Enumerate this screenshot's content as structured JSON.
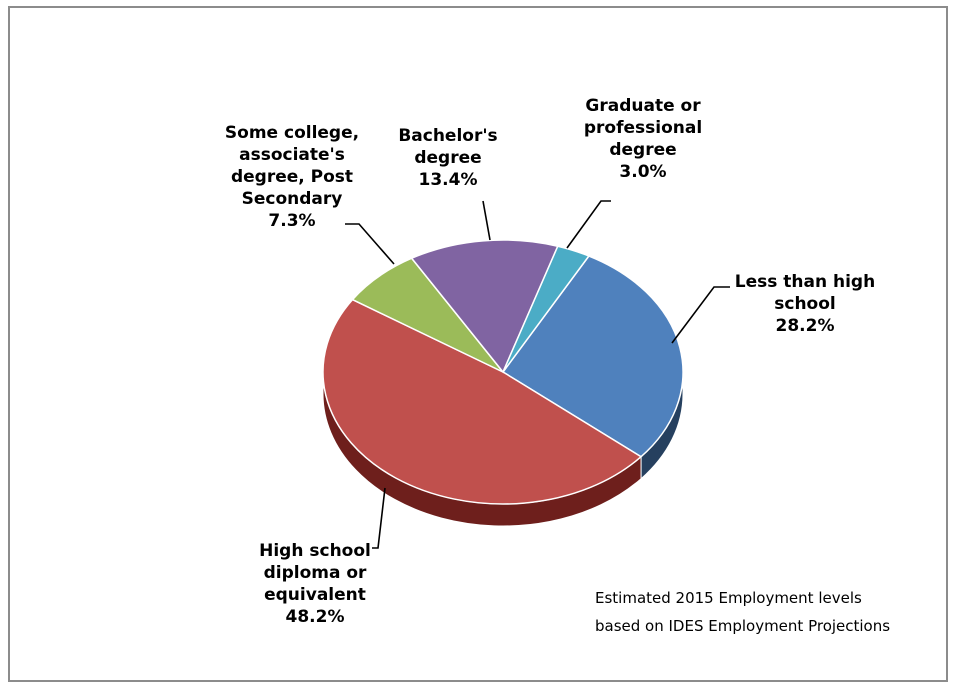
{
  "chart_data": {
    "type": "pie",
    "title": "",
    "slices": [
      {
        "label": "Less than high school",
        "label_lines": [
          "Less than high",
          "school"
        ],
        "value": 28.2,
        "value_text": "28.2%",
        "color": "#4f81bd",
        "side_color": "#26405f"
      },
      {
        "label": "High school diploma or equivalent",
        "label_lines": [
          "High school",
          "diploma or",
          "equivalent"
        ],
        "value": 48.2,
        "value_text": "48.2%",
        "color": "#c0504d",
        "side_color": "#6e1f1c"
      },
      {
        "label": "Some college, associate's degree, Post Secondary",
        "label_lines": [
          "Some college,",
          "associate's",
          "degree, Post",
          "Secondary"
        ],
        "value": 7.3,
        "value_text": "7.3%",
        "color": "#9bbb59",
        "side_color": "#5a7030"
      },
      {
        "label": "Bachelor's degree",
        "label_lines": [
          "Bachelor's",
          "degree"
        ],
        "value": 13.4,
        "value_text": "13.4%",
        "color": "#8064a2",
        "side_color": "#463560"
      },
      {
        "label": "Graduate or professional degree",
        "label_lines": [
          "Graduate or",
          "professional",
          "degree"
        ],
        "value": 3.0,
        "value_text": "3.0%",
        "color": "#4bacc6",
        "side_color": "#276070"
      }
    ],
    "annotation": [
      "Estimated 2015 Employment levels",
      "based on IDES Employment Projections"
    ]
  }
}
